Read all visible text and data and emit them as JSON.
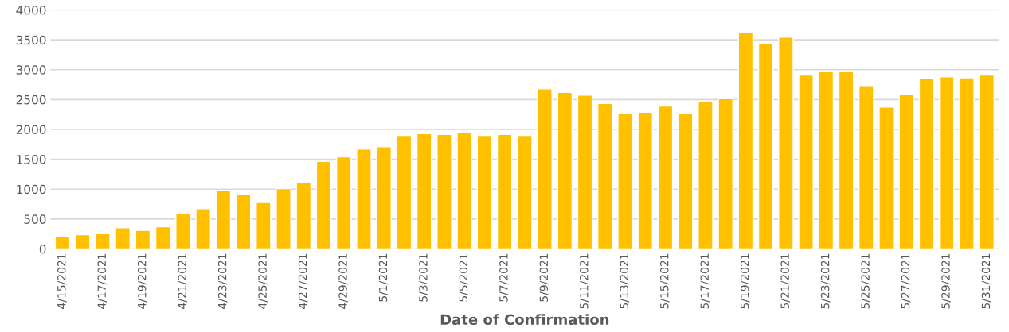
{
  "chart_data": {
    "type": "bar",
    "xlabel": "Date of Confirmation",
    "categories": [
      "4/15/2021",
      null,
      "4/17/2021",
      null,
      "4/19/2021",
      null,
      "4/21/2021",
      null,
      "4/23/2021",
      null,
      "4/25/2021",
      null,
      "4/27/2021",
      null,
      "4/29/2021",
      null,
      "5/1/2021",
      null,
      "5/3/2021",
      null,
      "5/5/2021",
      null,
      "5/7/2021",
      null,
      "5/9/2021",
      null,
      "5/11/2021",
      null,
      "5/13/2021",
      null,
      "5/15/2021",
      null,
      "5/17/2021",
      null,
      "5/19/2021",
      null,
      "5/21/2021",
      null,
      "5/23/2021",
      null,
      "5/25/2021",
      null,
      "5/27/2021",
      null,
      "5/29/2021",
      null,
      "5/31/2021"
    ],
    "values": [
      210,
      240,
      255,
      355,
      310,
      370,
      590,
      675,
      975,
      905,
      790,
      1010,
      1120,
      1465,
      1540,
      1670,
      1710,
      1900,
      1930,
      1915,
      1945,
      1900,
      1915,
      1900,
      2680,
      2620,
      2575,
      2435,
      2275,
      2290,
      2390,
      2275,
      2460,
      2515,
      3625,
      3440,
      3545,
      2910,
      2965,
      2965,
      2735,
      2375,
      2595,
      2850,
      2880,
      2865,
      2910
    ],
    "color": "#ffc000",
    "ylim": [
      0,
      4000
    ],
    "yticks": [
      0,
      500,
      1000,
      1500,
      2000,
      2500,
      3000,
      3500,
      4000
    ],
    "grid": "y"
  }
}
